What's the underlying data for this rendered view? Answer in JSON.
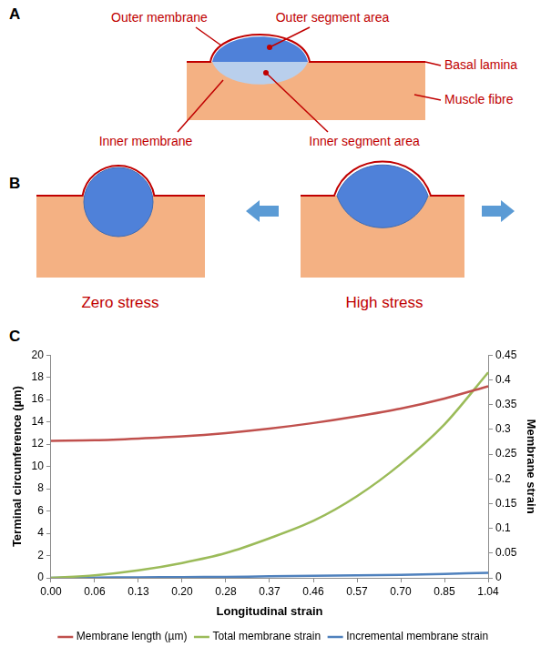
{
  "diagram": {
    "panel_a": {
      "letter": "A",
      "labels": {
        "outer_membrane": "Outer membrane",
        "outer_segment_area": "Outer segment area",
        "basal_lamina": "Basal lamina",
        "muscle_fibre": "Muscle fibre",
        "inner_membrane": "Inner membrane",
        "inner_segment_area": "Inner segment area"
      }
    },
    "panel_b": {
      "letter": "B",
      "labels": {
        "left": "Zero stress",
        "right": "High stress"
      }
    },
    "panel_c": {
      "letter": "C"
    }
  },
  "chart_data": {
    "type": "line",
    "x_label": "Longitudinal strain",
    "y_label": "Terminal circumference (µm)",
    "y2_label": "Membrane strain",
    "categories": [
      "0.00",
      "0.06",
      "0.13",
      "0.20",
      "0.28",
      "0.37",
      "0.46",
      "0.57",
      "0.70",
      "0.85",
      "1.04"
    ],
    "series": [
      {
        "name": "Membrane length (µm)",
        "color": "#c0504d",
        "values": [
          12.3,
          12.35,
          12.5,
          12.7,
          13.0,
          13.4,
          13.9,
          14.5,
          15.2,
          16.1,
          17.2
        ]
      },
      {
        "name": "Total membrane strain",
        "color": "#9bbb59",
        "axis": "y2",
        "values": [
          0,
          0.005,
          0.015,
          0.03,
          0.05,
          0.08,
          0.115,
          0.165,
          0.23,
          0.31,
          0.415
        ]
      },
      {
        "name": "Incremental membrane strain",
        "color": "#4f81bd",
        "axis": "y2",
        "values": [
          0,
          0.0005,
          0.001,
          0.0015,
          0.002,
          0.003,
          0.004,
          0.005,
          0.006,
          0.008,
          0.01
        ]
      }
    ],
    "ylim": [
      0,
      20
    ],
    "yticks": [
      0,
      2,
      4,
      6,
      8,
      10,
      12,
      14,
      16,
      18,
      20
    ],
    "y2lim": [
      0,
      0.45
    ],
    "y2ticks": [
      0,
      0.05,
      0.1,
      0.15,
      0.2,
      0.25,
      0.3,
      0.35,
      0.4,
      0.45
    ],
    "grid": false,
    "legend": "bottom",
    "marker": "none",
    "line_style": "solid"
  }
}
